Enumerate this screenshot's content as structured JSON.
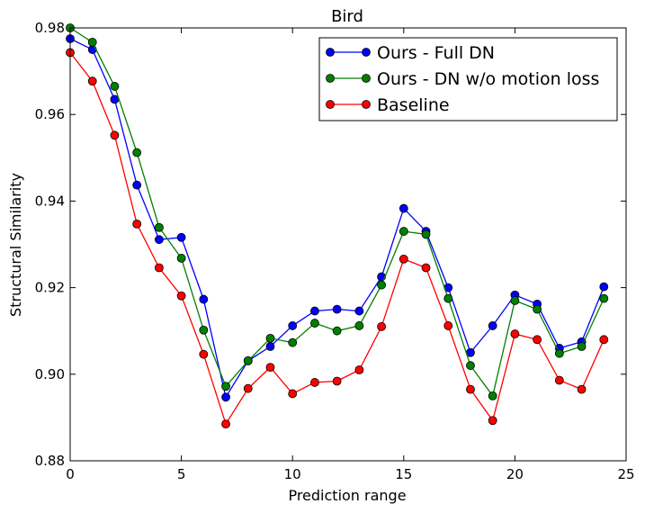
{
  "chart_data": {
    "type": "line",
    "title": "Bird",
    "xlabel": "Prediction range",
    "ylabel": "Structural Similarity",
    "xlim": [
      0,
      25
    ],
    "ylim": [
      0.88,
      0.98
    ],
    "xticks": [
      0,
      5,
      10,
      15,
      20,
      25
    ],
    "xtick_labels": [
      "0",
      "5",
      "10",
      "15",
      "20",
      "25"
    ],
    "yticks": [
      0.88,
      0.9,
      0.92,
      0.94,
      0.96,
      0.98
    ],
    "ytick_labels": [
      "0.88",
      "0.90",
      "0.92",
      "0.94",
      "0.96",
      "0.98"
    ],
    "legend_position": "top-right",
    "x": [
      0,
      1,
      2,
      3,
      4,
      5,
      6,
      7,
      8,
      9,
      10,
      11,
      12,
      13,
      14,
      15,
      16,
      17,
      18,
      19,
      20,
      21,
      22,
      23,
      24
    ],
    "series": [
      {
        "name": "Ours - Full DN",
        "color": "#0000ff",
        "values": [
          0.9775,
          0.975,
          0.9635,
          0.9437,
          0.9311,
          0.9316,
          0.9173,
          0.8947,
          0.9031,
          0.9064,
          0.9112,
          0.9146,
          0.915,
          0.9146,
          0.9225,
          0.9383,
          0.933,
          0.92,
          0.905,
          0.9112,
          0.9183,
          0.9162,
          0.906,
          0.9075,
          0.9202
        ]
      },
      {
        "name": "Ours - DN w/o motion loss",
        "color": "#008000",
        "values": [
          0.98,
          0.9767,
          0.9665,
          0.9512,
          0.9339,
          0.9268,
          0.9102,
          0.8972,
          0.9031,
          0.9083,
          0.9073,
          0.9118,
          0.91,
          0.9112,
          0.9206,
          0.933,
          0.9323,
          0.9175,
          0.902,
          0.895,
          0.917,
          0.915,
          0.9048,
          0.9064,
          0.9175
        ]
      },
      {
        "name": "Baseline",
        "color": "#ff0000",
        "values": [
          0.9743,
          0.9677,
          0.9552,
          0.9347,
          0.9246,
          0.9181,
          0.9046,
          0.8885,
          0.8967,
          0.9016,
          0.8955,
          0.8981,
          0.8984,
          0.901,
          0.911,
          0.9266,
          0.9246,
          0.9112,
          0.8965,
          0.8893,
          0.9093,
          0.908,
          0.8986,
          0.8965,
          0.908
        ]
      }
    ]
  }
}
